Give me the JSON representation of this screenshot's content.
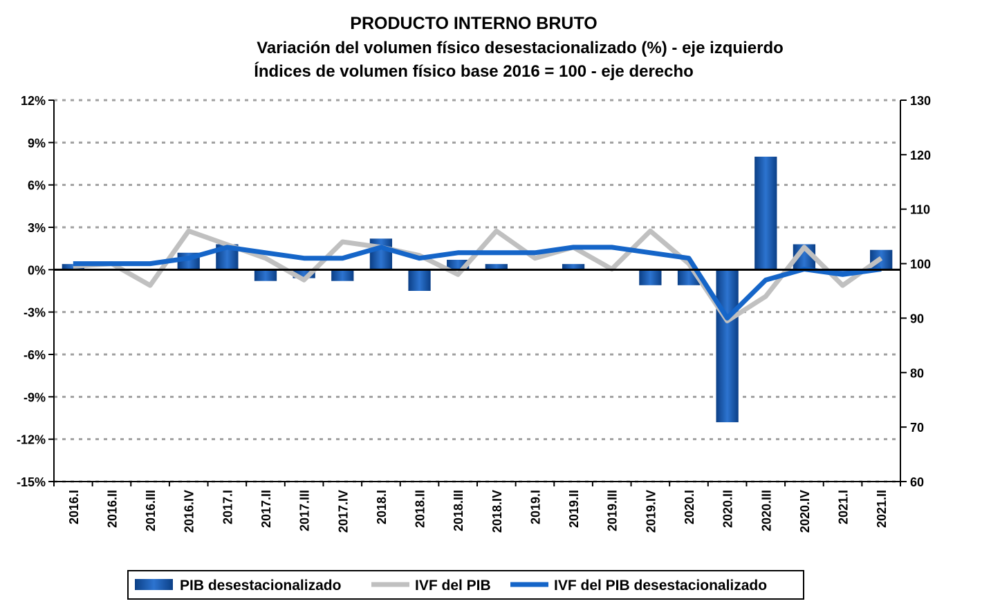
{
  "chart_data": {
    "type": "bar+line",
    "title": "PRODUCTO INTERNO BRUTO",
    "subtitle_1": "Variación del volumen físico desestacionalizado (%) - eje izquierdo",
    "subtitle_2": "Índices de volumen físico base 2016 = 100 - eje derecho",
    "categories": [
      "2016.I",
      "2016.II",
      "2016.III",
      "2016.IV",
      "2017.I",
      "2017.II",
      "2017.III",
      "2017.IV",
      "2018.I",
      "2018.II",
      "2018.III",
      "2018.IV",
      "2019.I",
      "2019.II",
      "2019.III",
      "2019.IV",
      "2020.I",
      "2020.II",
      "2020.III",
      "2020.IV",
      "2021.I",
      "2021.II"
    ],
    "left_axis": {
      "min": -15,
      "max": 12,
      "step": 3,
      "unit": "%",
      "tick_labels": [
        "12%",
        "9%",
        "6%",
        "3%",
        "0%",
        "-3%",
        "-6%",
        "-9%",
        "-12%",
        "-15%"
      ]
    },
    "right_axis": {
      "min": 60,
      "max": 130,
      "step": 10,
      "tick_labels": [
        "130",
        "120",
        "110",
        "100",
        "90",
        "80",
        "70",
        "60"
      ]
    },
    "grid": true,
    "legend_position": "bottom",
    "series": [
      {
        "name": "PIB desestacionalizado",
        "type": "bar",
        "axis": "left",
        "color": "#0a4fa0",
        "values": [
          0.4,
          0.0,
          0.0,
          1.2,
          1.8,
          -0.8,
          -0.6,
          -0.8,
          2.2,
          -1.5,
          0.7,
          0.4,
          0.0,
          0.4,
          0.0,
          -1.1,
          -1.1,
          -10.8,
          8.0,
          1.8,
          -0.4,
          1.4
        ]
      },
      {
        "name": "IVF del PIB",
        "type": "line",
        "axis": "right",
        "color": "#c0c0c0",
        "values": [
          99.5,
          100.0,
          96.0,
          106.0,
          103.5,
          101.0,
          97.0,
          104.0,
          103.0,
          101.5,
          98.0,
          106.0,
          101.0,
          103.0,
          99.0,
          106.0,
          100.0,
          89.5,
          94.0,
          103.0,
          96.0,
          101.0
        ]
      },
      {
        "name": "IVF del PIB desestacionalizado",
        "type": "line",
        "axis": "right",
        "color": "#1565c8",
        "values": [
          100.0,
          100.0,
          100.0,
          101.0,
          103.0,
          102.0,
          101.0,
          101.0,
          103.0,
          101.0,
          102.0,
          102.0,
          102.0,
          103.0,
          103.0,
          102.0,
          101.0,
          90.0,
          97.0,
          99.0,
          98.0,
          99.0
        ]
      }
    ]
  }
}
